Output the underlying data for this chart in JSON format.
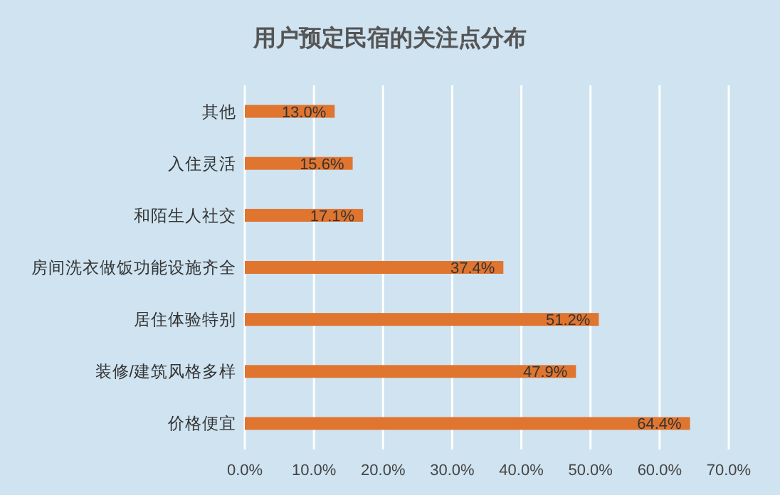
{
  "chart_data": {
    "type": "bar",
    "orientation": "horizontal",
    "title": "用户预定民宿的关注点分布",
    "categories": [
      "其他",
      "入住灵活",
      "和陌生人社交",
      "房间洗衣做饭功能设施齐全",
      "居住体验特别",
      "装修/建筑风格多样",
      "价格便宜"
    ],
    "values": [
      13.0,
      15.6,
      17.1,
      37.4,
      51.2,
      47.9,
      64.4
    ],
    "value_labels": [
      "13.0%",
      "15.6%",
      "17.1%",
      "37.4%",
      "51.2%",
      "47.9%",
      "64.4%"
    ],
    "color": "#e07530",
    "xlim": [
      0,
      70
    ],
    "xticks": [
      {
        "value": 0,
        "label": "0.0%"
      },
      {
        "value": 10,
        "label": "10.0%"
      },
      {
        "value": 20,
        "label": "20.0%"
      },
      {
        "value": 30,
        "label": "30.0%"
      },
      {
        "value": 40,
        "label": "40.0%"
      },
      {
        "value": 50,
        "label": "50.0%"
      },
      {
        "value": 60,
        "label": "60.0%"
      },
      {
        "value": 70,
        "label": "70.0%"
      }
    ],
    "grid": "x"
  }
}
